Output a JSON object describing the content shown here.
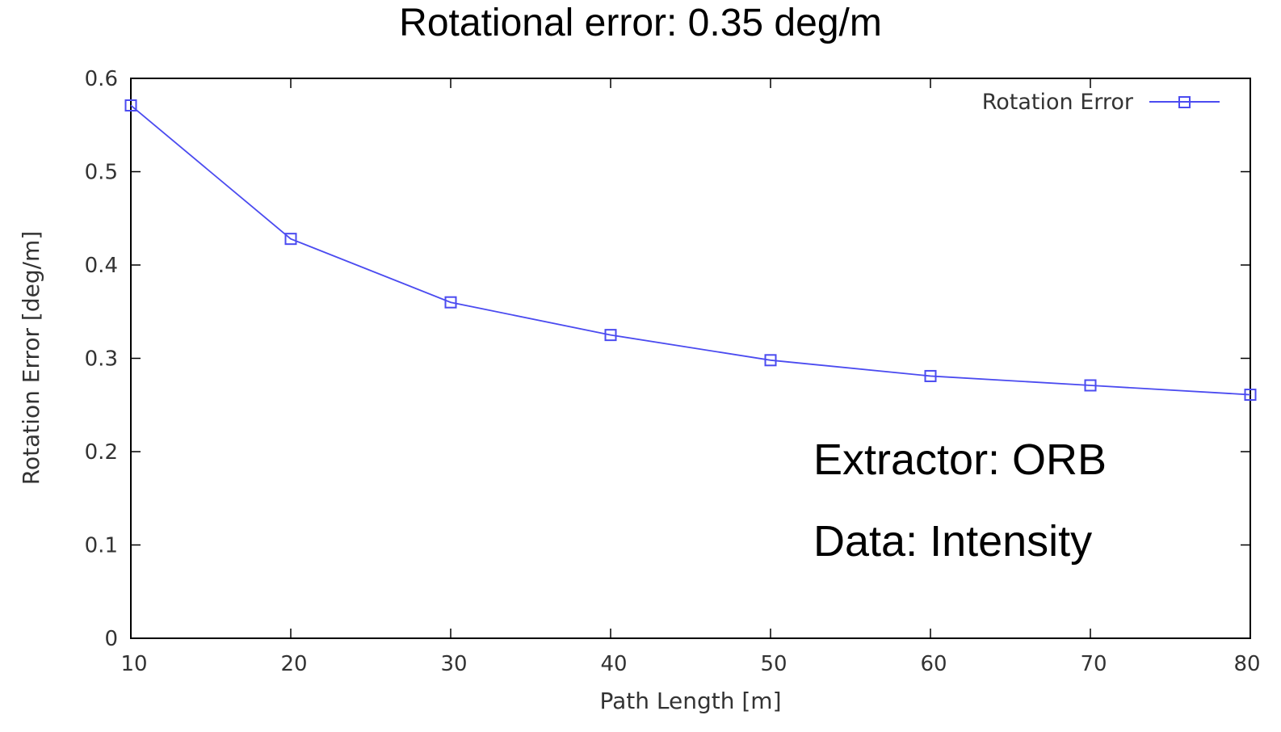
{
  "chart_data": {
    "type": "line",
    "title": "Rotational error: 0.35 deg/m",
    "xlabel": "Path Length [m]",
    "ylabel": "Rotation Error [deg/m]",
    "xlim": [
      10,
      80
    ],
    "ylim": [
      0,
      0.6
    ],
    "xticks": [
      10,
      20,
      30,
      40,
      50,
      60,
      70,
      80
    ],
    "yticks": [
      0,
      0.1,
      0.2,
      0.3,
      0.4,
      0.5,
      0.6
    ],
    "x": [
      10,
      20,
      30,
      40,
      50,
      60,
      70,
      80
    ],
    "series": [
      {
        "name": "Rotation Error",
        "values": [
          0.571,
          0.428,
          0.36,
          0.325,
          0.298,
          0.281,
          0.271,
          0.261
        ],
        "color": "#4b4bf0",
        "marker": "square"
      }
    ],
    "legend": "top-right",
    "grid": false,
    "annotations": [
      "Extractor: ORB",
      "Data: Intensity"
    ]
  }
}
